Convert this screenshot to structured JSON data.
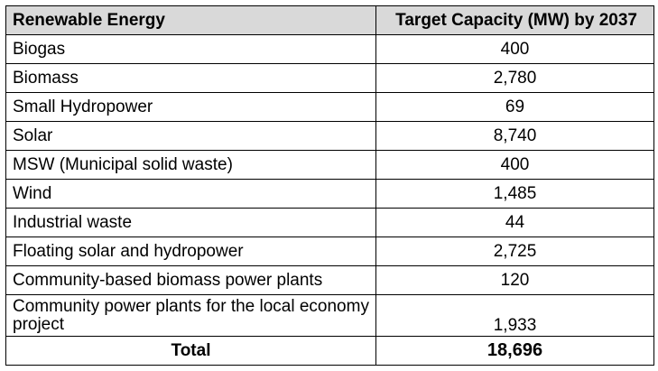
{
  "table": {
    "headers": [
      "Renewable Energy",
      "Target Capacity (MW) by 2037"
    ],
    "rows": [
      {
        "name": "Biogas",
        "value": "400"
      },
      {
        "name": "Biomass",
        "value": "2,780"
      },
      {
        "name": "Small Hydropower",
        "value": "69"
      },
      {
        "name": "Solar",
        "value": "8,740"
      },
      {
        "name": "MSW (Municipal solid waste)",
        "value": "400"
      },
      {
        "name": "Wind",
        "value": "1,485"
      },
      {
        "name": "Industrial waste",
        "value": "44"
      },
      {
        "name": "Floating solar and hydropower",
        "value": "2,725"
      },
      {
        "name": "Community-based biomass power plants",
        "value": "120"
      },
      {
        "name": "Community power plants for the local economy project",
        "value": "1,933"
      }
    ],
    "total": {
      "label": "Total",
      "value": "18,696"
    }
  }
}
